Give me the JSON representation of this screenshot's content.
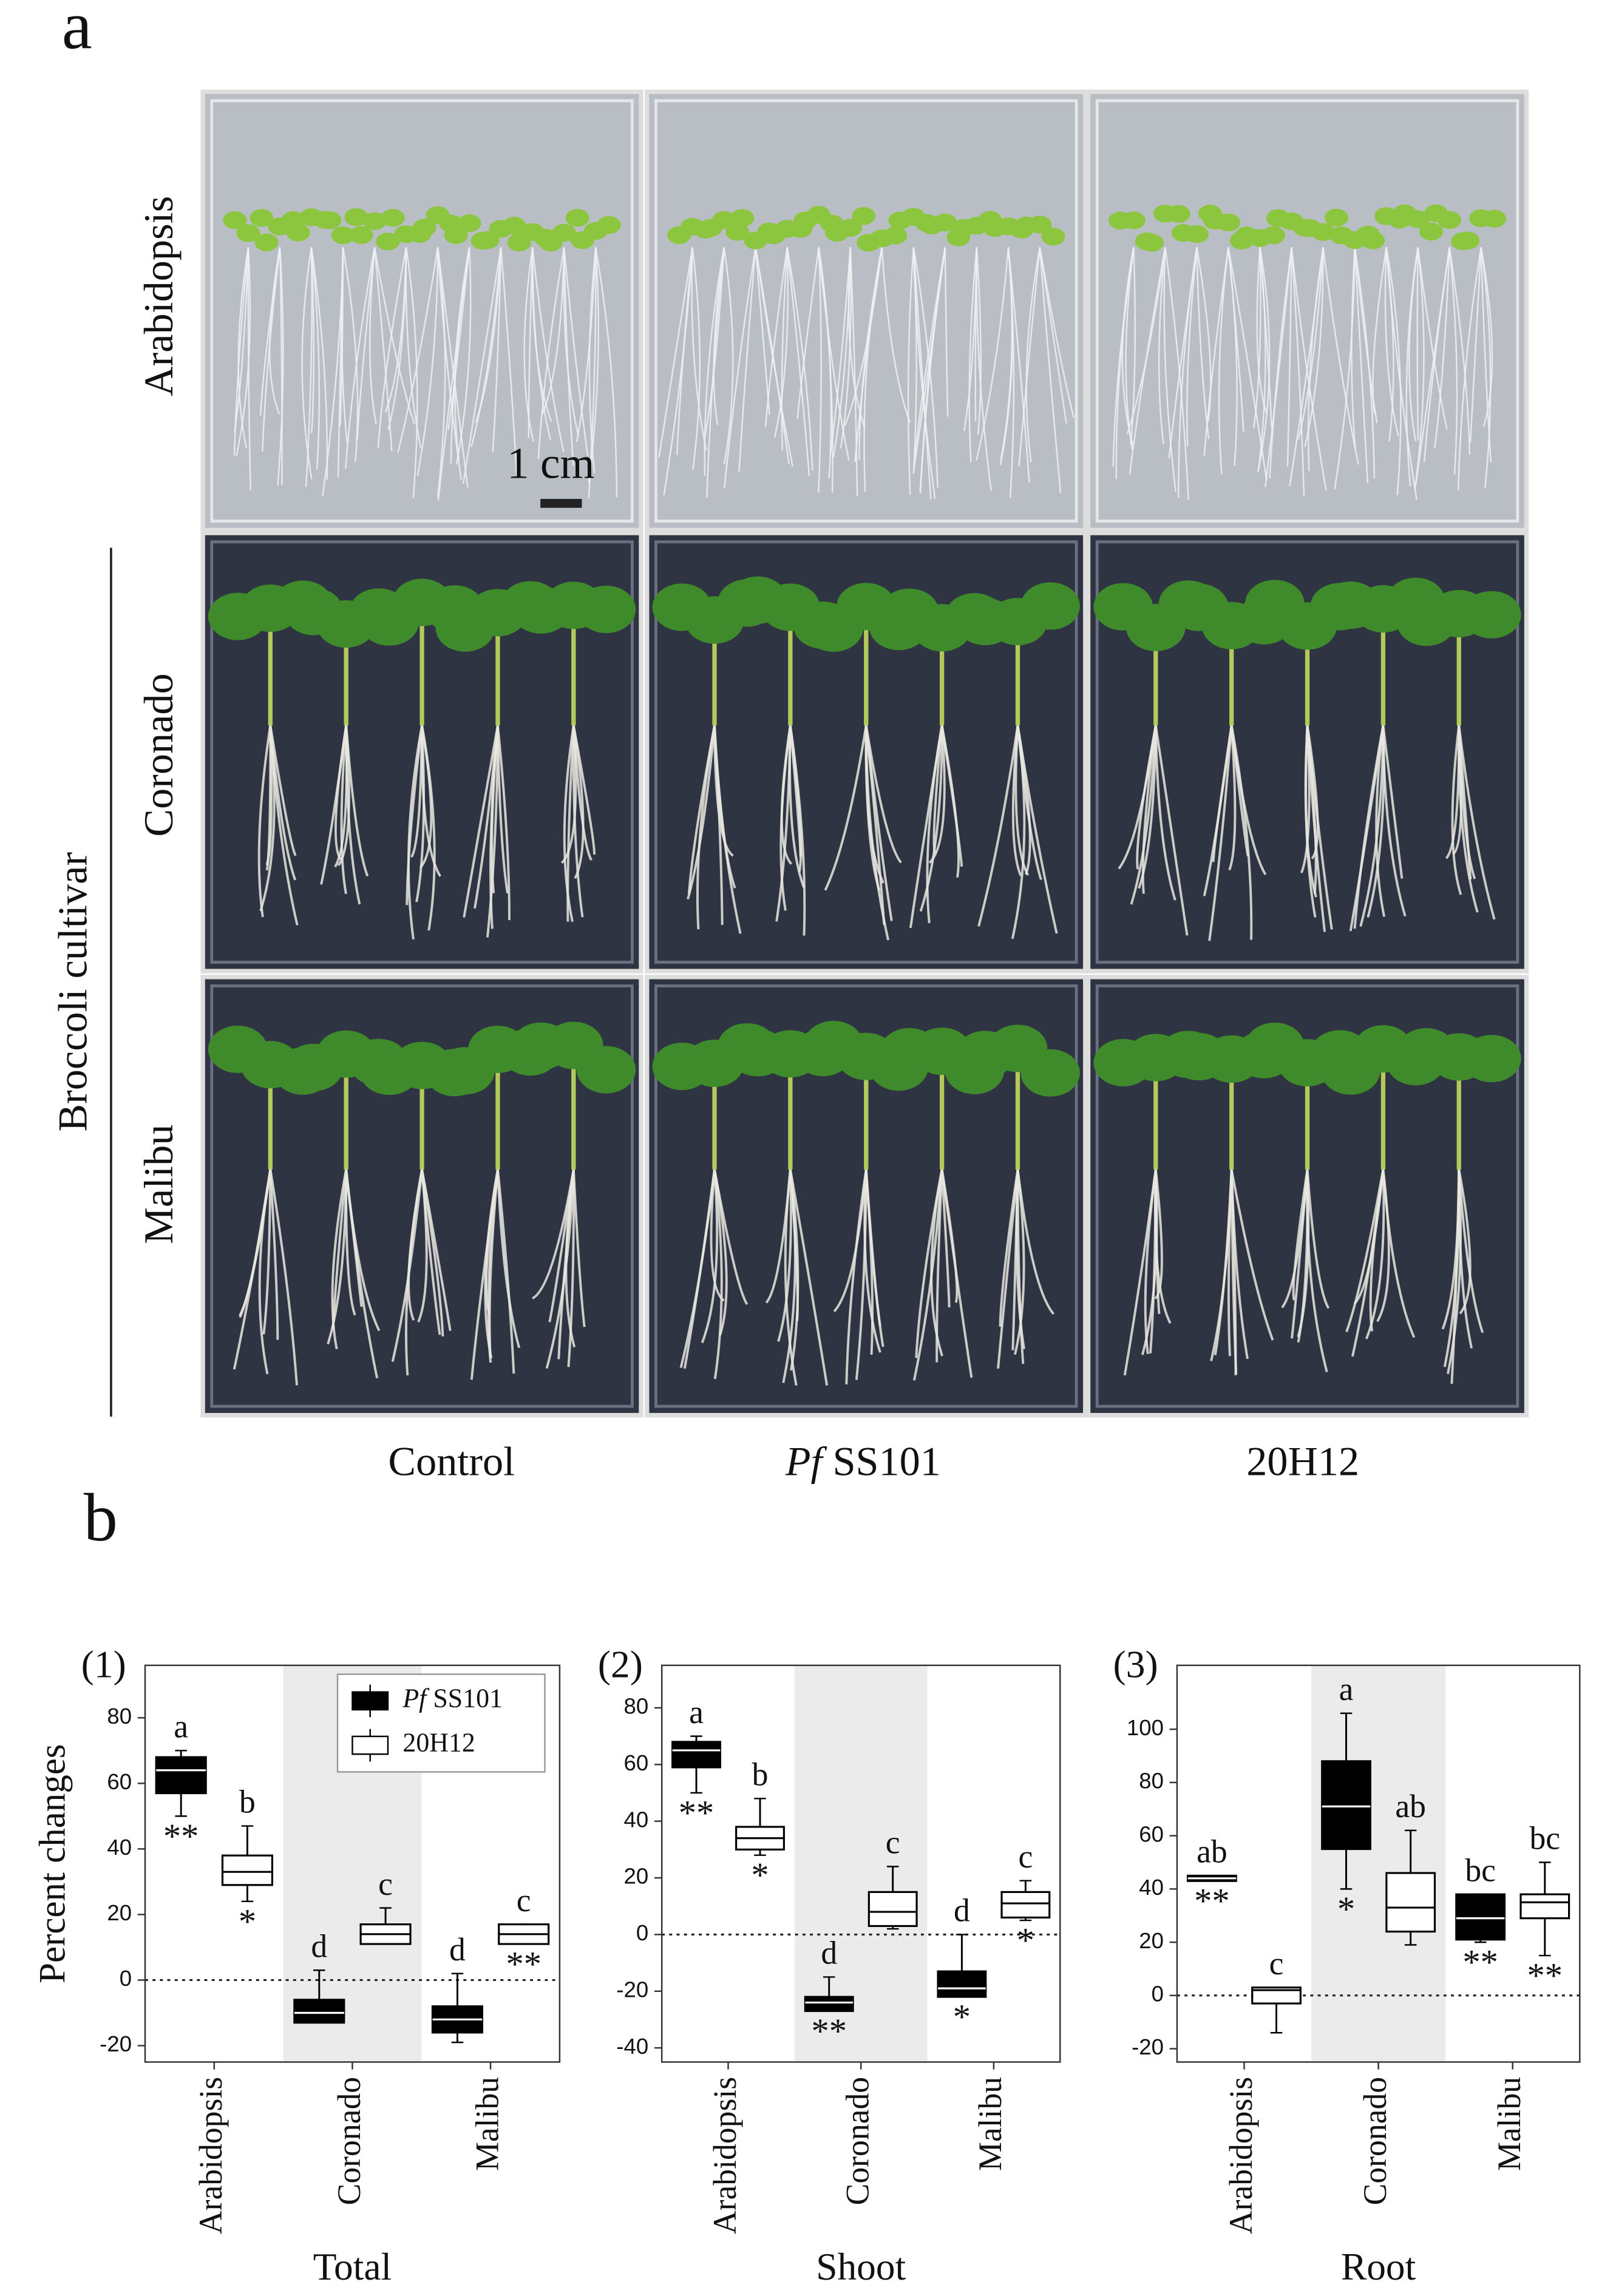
{
  "figure": {
    "panel_a": "a",
    "panel_b": "b",
    "row_labels": [
      "Arabidopsis",
      "Coronado",
      "Malibu"
    ],
    "group_label": "Broccoli cultivar",
    "column_labels": [
      "Control",
      "Pf SS101",
      "20H12"
    ],
    "scale_bar": "1 cm"
  },
  "chart_data": [
    {
      "type": "box",
      "title": "(1)",
      "x_label": "Total",
      "y_label": "Percent changes",
      "categories": [
        "Arabidopsis",
        "Coronado",
        "Malibu"
      ],
      "shaded_index": 1,
      "shade_color": "#ebebeb",
      "hline": 0,
      "ylim": [
        -25,
        96
      ],
      "yticks": [
        -20,
        0,
        20,
        40,
        60,
        80
      ],
      "legend": "upper right",
      "series": [
        {
          "name": "Pf SS101",
          "color": "#000000",
          "min": [
            50,
            -13,
            -19
          ],
          "q1": [
            57,
            -13,
            -16
          ],
          "median": [
            64,
            -10,
            -12
          ],
          "q3": [
            68,
            -6,
            -8
          ],
          "max": [
            70,
            3,
            2
          ],
          "letters": [
            "a",
            "d",
            "d"
          ],
          "significance": [
            "**",
            null,
            null
          ]
        },
        {
          "name": "20H12",
          "color": "#ffffff",
          "min": [
            24,
            11,
            11
          ],
          "q1": [
            29,
            11,
            11
          ],
          "median": [
            33,
            14,
            14
          ],
          "q3": [
            38,
            17,
            17
          ],
          "max": [
            47,
            22,
            17
          ],
          "letters": [
            "b",
            "c",
            "c"
          ],
          "significance": [
            "*",
            null,
            "**"
          ]
        }
      ]
    },
    {
      "type": "box",
      "title": "(2)",
      "x_label": "Shoot",
      "categories": [
        "Arabidopsis",
        "Coronado",
        "Malibu"
      ],
      "shaded_index": 1,
      "shade_color": "#ebebeb",
      "hline": 0,
      "ylim": [
        -45,
        95
      ],
      "yticks": [
        -40,
        -20,
        0,
        20,
        40,
        60,
        80
      ],
      "series": [
        {
          "color": "#000000",
          "min": [
            50,
            -27,
            -22
          ],
          "q1": [
            59,
            -27,
            -22
          ],
          "median": [
            65,
            -24,
            -19
          ],
          "q3": [
            68,
            -22,
            -13
          ],
          "max": [
            70,
            -15,
            0
          ],
          "letters": [
            "a",
            "d",
            "d"
          ],
          "significance": [
            "**",
            "**",
            "*"
          ]
        },
        {
          "color": "#ffffff",
          "min": [
            28,
            2,
            5
          ],
          "q1": [
            30,
            3,
            6
          ],
          "median": [
            34,
            8,
            11
          ],
          "q3": [
            38,
            15,
            15
          ],
          "max": [
            48,
            24,
            19
          ],
          "letters": [
            "b",
            "c",
            "c"
          ],
          "significance": [
            "*",
            null,
            "*"
          ]
        }
      ]
    },
    {
      "type": "box",
      "title": "(3)",
      "x_label": "Root",
      "categories": [
        "Arabidopsis",
        "Coronado",
        "Malibu"
      ],
      "shaded_index": 1,
      "shade_color": "#ebebeb",
      "hline": 0,
      "ylim": [
        -25,
        124
      ],
      "yticks": [
        -20,
        0,
        20,
        40,
        60,
        80,
        100
      ],
      "series": [
        {
          "color": "#000000",
          "min": [
            43,
            40,
            20
          ],
          "q1": [
            43,
            55,
            21
          ],
          "median": [
            44,
            71,
            29
          ],
          "q3": [
            45,
            88,
            38
          ],
          "max": [
            45,
            106,
            38
          ],
          "letters": [
            "ab",
            "a",
            "bc"
          ],
          "significance": [
            "**",
            "*",
            "**"
          ]
        },
        {
          "color": "#ffffff",
          "min": [
            -14,
            19,
            15
          ],
          "q1": [
            -3,
            24,
            29
          ],
          "median": [
            2,
            33,
            35
          ],
          "q3": [
            3,
            46,
            38
          ],
          "max": [
            3,
            62,
            50
          ],
          "letters": [
            "c",
            "ab",
            "bc"
          ],
          "significance": [
            null,
            null,
            "**"
          ]
        }
      ]
    }
  ]
}
